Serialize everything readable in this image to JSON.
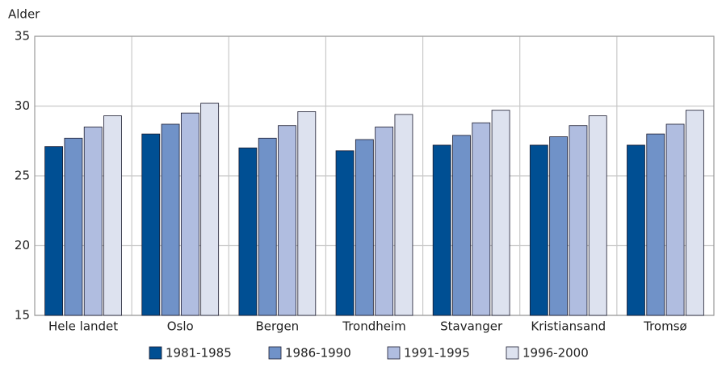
{
  "chart_data": {
    "type": "bar",
    "y_label": "Alder",
    "categories": [
      "Hele landet",
      "Oslo",
      "Bergen",
      "Trondheim",
      "Stavanger",
      "Kristiansand",
      "Tromsø"
    ],
    "series": [
      {
        "name": "1981-1985",
        "color": "#004f93",
        "values": [
          27.1,
          28.0,
          27.0,
          26.8,
          27.2,
          27.2,
          27.2
        ]
      },
      {
        "name": "1986-1990",
        "color": "#7092c8",
        "values": [
          27.7,
          28.7,
          27.7,
          27.6,
          27.9,
          27.8,
          28.0
        ]
      },
      {
        "name": "1991-1995",
        "color": "#b0bde0",
        "values": [
          28.5,
          29.5,
          28.6,
          28.5,
          28.8,
          28.6,
          28.7
        ]
      },
      {
        "name": "1996-2000",
        "color": "#dde2ef",
        "values": [
          29.3,
          30.2,
          29.6,
          29.4,
          29.7,
          29.3,
          29.7
        ]
      }
    ],
    "ylim": [
      15,
      35
    ],
    "yticks": [
      15,
      20,
      25,
      30,
      35
    ],
    "grid": true
  }
}
